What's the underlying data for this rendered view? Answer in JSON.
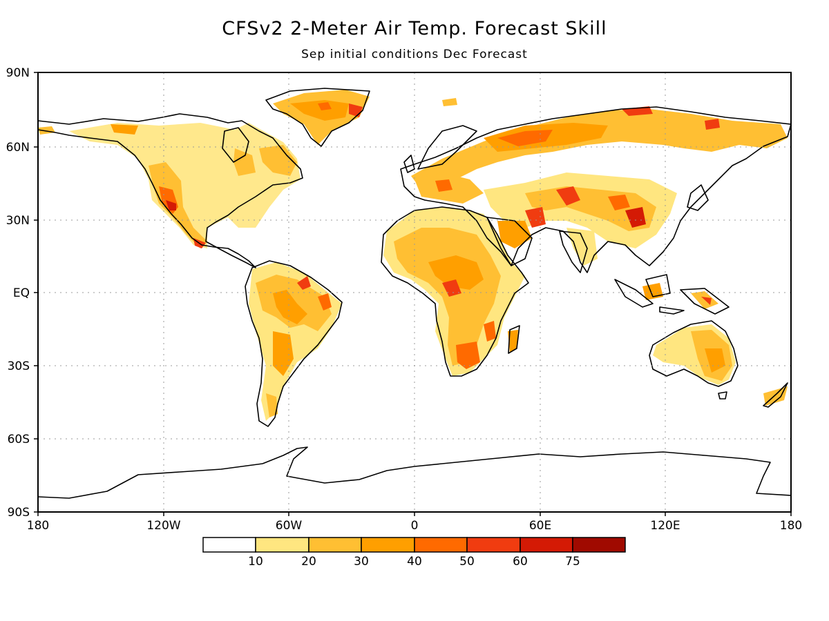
{
  "title": "CFSv2 2-Meter Air Temp. Forecast Skill",
  "subtitle": "Sep initial conditions   Dec Forecast",
  "map": {
    "lat_labels": [
      "90N",
      "60N",
      "30N",
      "EQ",
      "30S",
      "60S",
      "90S"
    ],
    "lon_labels": [
      "180",
      "120W",
      "60W",
      "0",
      "60E",
      "120E",
      "180"
    ]
  },
  "legend": {
    "bins": [
      {
        "color": "#ffffff"
      },
      {
        "color": "#ffe680"
      },
      {
        "color": "#ffbf33"
      },
      {
        "color": "#ff9f00"
      },
      {
        "color": "#ff6a00"
      },
      {
        "color": "#f03c10"
      },
      {
        "color": "#d41a05"
      },
      {
        "color": "#a00a00"
      }
    ],
    "labels": [
      "10",
      "20",
      "30",
      "40",
      "50",
      "60",
      "75"
    ]
  }
}
